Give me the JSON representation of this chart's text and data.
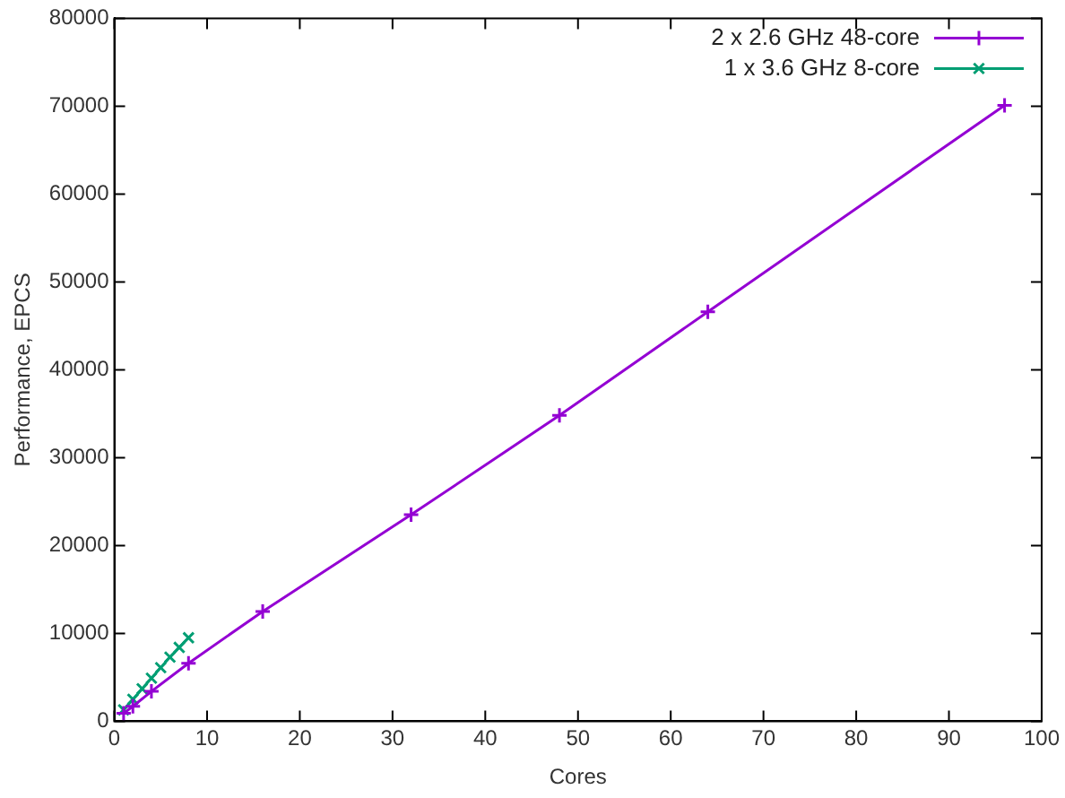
{
  "chart_data": {
    "type": "line",
    "xlabel": "Cores",
    "ylabel": "Performance, EPCS",
    "xlim": [
      0,
      100
    ],
    "xticks": [
      0,
      10,
      20,
      30,
      40,
      50,
      60,
      70,
      80,
      90,
      100
    ],
    "ylim": [
      0,
      80000
    ],
    "yticks": [
      0,
      10000,
      20000,
      30000,
      40000,
      50000,
      60000,
      70000,
      80000
    ],
    "grid": false,
    "legend": "top right",
    "line_style": "solid",
    "series": [
      {
        "name": "2 x 2.6 GHz 48-core",
        "color": "#9400d3",
        "marker": "cross",
        "x": [
          1,
          2,
          4,
          8,
          16,
          32,
          48,
          64,
          96
        ],
        "values": [
          900,
          1700,
          3400,
          6600,
          12500,
          23500,
          34800,
          46600,
          70100
        ]
      },
      {
        "name": "1 x 3.6 GHz 8-core",
        "color": "#009e73",
        "marker": "cross",
        "x": [
          1,
          2,
          3,
          4,
          5,
          6,
          7,
          8
        ],
        "values": [
          1300,
          2500,
          3700,
          4900,
          6100,
          7300,
          8400,
          9500
        ]
      }
    ]
  }
}
